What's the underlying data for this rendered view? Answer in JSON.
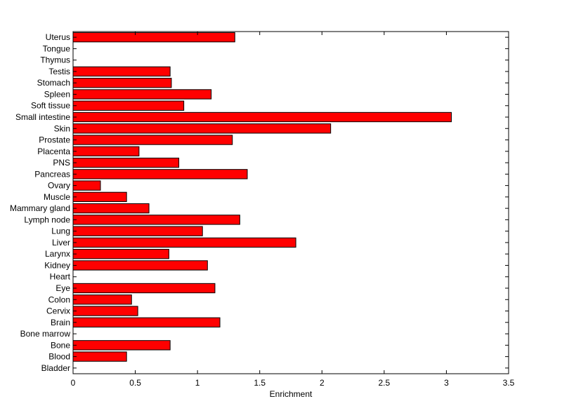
{
  "chart_data": {
    "type": "bar",
    "orientation": "horizontal",
    "xlabel": "Enrichment",
    "ylabel": "",
    "xlim": [
      0,
      3.5
    ],
    "xticks": [
      "0",
      "0.5",
      "1",
      "1.5",
      "2",
      "2.5",
      "3",
      "3.5"
    ],
    "grid": false,
    "bar_color": "#ff0000",
    "bar_edge_color": "#000000",
    "categories": [
      "Uterus",
      "Tongue",
      "Thymus",
      "Testis",
      "Stomach",
      "Spleen",
      "Soft tissue",
      "Small intestine",
      "Skin",
      "Prostate",
      "Placenta",
      "PNS",
      "Pancreas",
      "Ovary",
      "Muscle",
      "Mammary gland",
      "Lymph node",
      "Lung",
      "Liver",
      "Larynx",
      "Kidney",
      "Heart",
      "Eye",
      "Colon",
      "Cervix",
      "Brain",
      "Bone marrow",
      "Bone",
      "Blood",
      "Bladder"
    ],
    "values": [
      1.3,
      0,
      0,
      0.78,
      0.79,
      1.11,
      0.89,
      3.04,
      2.07,
      1.28,
      0.53,
      0.85,
      1.4,
      0.22,
      0.43,
      0.61,
      1.34,
      1.04,
      1.79,
      0.77,
      1.08,
      0,
      1.14,
      0.47,
      0.52,
      1.18,
      0,
      0.78,
      0.43,
      0
    ]
  }
}
